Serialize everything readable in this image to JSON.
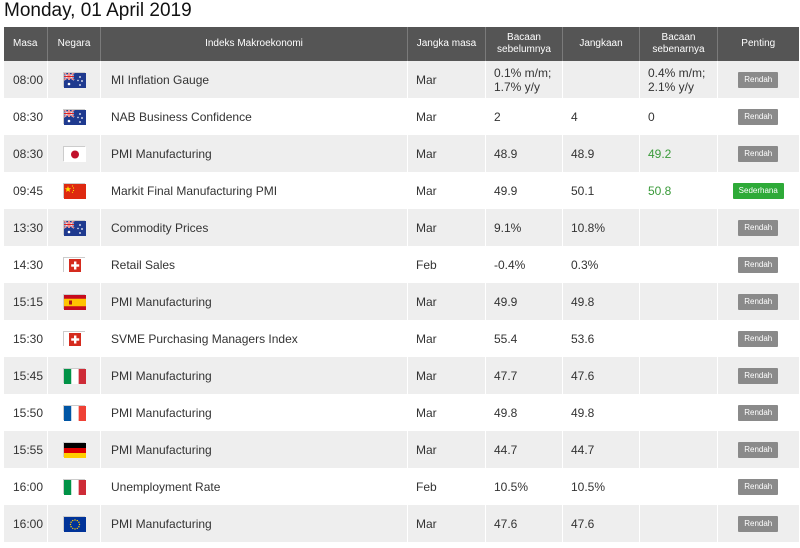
{
  "date_title": "Monday, 01 April 2019",
  "columns": {
    "time": "Masa",
    "country": "Negara",
    "indicator": "Indeks Makroekonomi",
    "period": "Jangka masa",
    "previous": "Bacaan sebelumnya",
    "forecast": "Jangkaan",
    "actual": "Bacaan sebenarnya",
    "importance": "Penting"
  },
  "rows": [
    {
      "time": "08:00",
      "flag": "australia-flag",
      "name": "MI Inflation Gauge",
      "period": "Mar",
      "prev": "0.1% m/m;\n1.7% y/y",
      "cons": "",
      "act": "0.4% m/m;\n2.1% y/y",
      "act_color": "",
      "imp": "Rendah",
      "imp_color": "#8a8a8a"
    },
    {
      "time": "08:30",
      "flag": "australia-flag",
      "name": "NAB Business Confidence",
      "period": "Mar",
      "prev": "2",
      "cons": "4",
      "act": "0",
      "act_color": "",
      "imp": "Rendah",
      "imp_color": "#8a8a8a"
    },
    {
      "time": "08:30",
      "flag": "japan-flag",
      "name": "PMI Manufacturing",
      "period": "Mar",
      "prev": "48.9",
      "cons": "48.9",
      "act": "49.2",
      "act_color": "#3a9a3a",
      "imp": "Rendah",
      "imp_color": "#8a8a8a"
    },
    {
      "time": "09:45",
      "flag": "china-flag",
      "name": "Markit Final Manufacturing PMI",
      "period": "Mar",
      "prev": "49.9",
      "cons": "50.1",
      "act": "50.8",
      "act_color": "#3a9a3a",
      "imp": "Sederhana",
      "imp_color": "#2eaa38"
    },
    {
      "time": "13:30",
      "flag": "australia-flag",
      "name": "Commodity Prices",
      "period": "Mar",
      "prev": "9.1%",
      "cons": "10.8%",
      "act": "",
      "act_color": "",
      "imp": "Rendah",
      "imp_color": "#8a8a8a"
    },
    {
      "time": "14:30",
      "flag": "switzerland-flag",
      "name": "Retail Sales",
      "period": "Feb",
      "prev": "-0.4%",
      "cons": "0.3%",
      "act": "",
      "act_color": "",
      "imp": "Rendah",
      "imp_color": "#8a8a8a"
    },
    {
      "time": "15:15",
      "flag": "spain-flag",
      "name": "PMI Manufacturing",
      "period": "Mar",
      "prev": "49.9",
      "cons": "49.8",
      "act": "",
      "act_color": "",
      "imp": "Rendah",
      "imp_color": "#8a8a8a"
    },
    {
      "time": "15:30",
      "flag": "switzerland-flag",
      "name": "SVME Purchasing Managers Index",
      "period": "Mar",
      "prev": "55.4",
      "cons": "53.6",
      "act": "",
      "act_color": "",
      "imp": "Rendah",
      "imp_color": "#8a8a8a"
    },
    {
      "time": "15:45",
      "flag": "italy-flag",
      "name": "PMI Manufacturing",
      "period": "Mar",
      "prev": "47.7",
      "cons": "47.6",
      "act": "",
      "act_color": "",
      "imp": "Rendah",
      "imp_color": "#8a8a8a"
    },
    {
      "time": "15:50",
      "flag": "france-flag",
      "name": "PMI Manufacturing",
      "period": "Mar",
      "prev": "49.8",
      "cons": "49.8",
      "act": "",
      "act_color": "",
      "imp": "Rendah",
      "imp_color": "#8a8a8a"
    },
    {
      "time": "15:55",
      "flag": "germany-flag",
      "name": "PMI Manufacturing",
      "period": "Mar",
      "prev": "44.7",
      "cons": "44.7",
      "act": "",
      "act_color": "",
      "imp": "Rendah",
      "imp_color": "#8a8a8a"
    },
    {
      "time": "16:00",
      "flag": "italy-flag",
      "name": "Unemployment Rate",
      "period": "Feb",
      "prev": "10.5%",
      "cons": "10.5%",
      "act": "",
      "act_color": "",
      "imp": "Rendah",
      "imp_color": "#8a8a8a"
    },
    {
      "time": "16:00",
      "flag": "eu-flag",
      "name": "PMI Manufacturing",
      "period": "Mar",
      "prev": "47.6",
      "cons": "47.6",
      "act": "",
      "act_color": "",
      "imp": "Rendah",
      "imp_color": "#8a8a8a"
    }
  ]
}
